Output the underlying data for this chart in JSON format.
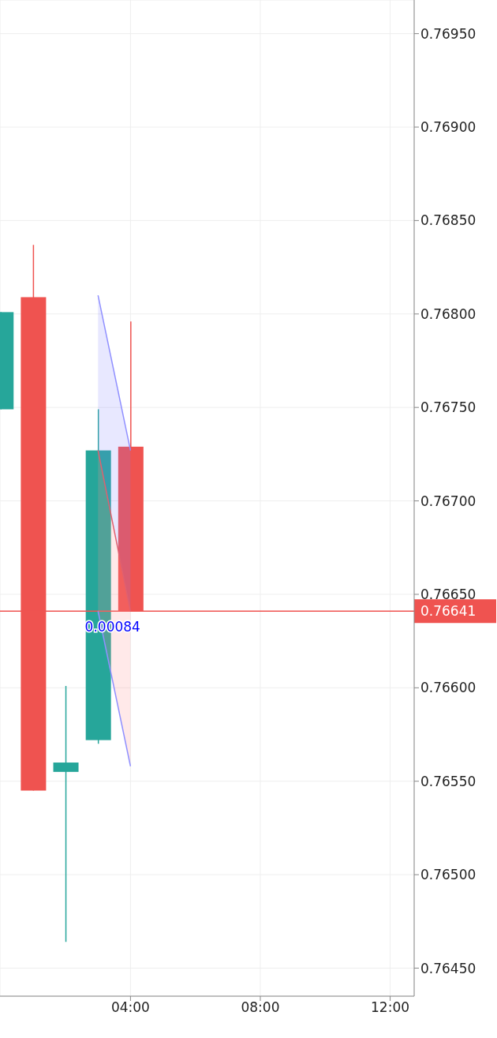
{
  "chart_data": {
    "type": "candlestick",
    "x": [
      0,
      1,
      2,
      3,
      4
    ],
    "ohlc": [
      [
        0.76749,
        0.76801,
        0.76749,
        0.76801
      ],
      [
        0.76809,
        0.76837,
        0.76545,
        0.76545
      ],
      [
        0.76555,
        0.76601,
        0.76464,
        0.7656
      ],
      [
        0.76572,
        0.76749,
        0.7657,
        0.76727
      ],
      [
        0.76729,
        0.76796,
        0.76641,
        0.76641
      ]
    ],
    "colors": [
      "#26a69a",
      "#ef5350",
      "#26a69a",
      "#26a69a",
      "#ef5350"
    ],
    "xlim": [
      -0.02,
      12.74
    ],
    "xticks": [
      {
        "value": 4,
        "label": "04:00"
      },
      {
        "value": 8,
        "label": "08:00"
      },
      {
        "value": 12,
        "label": "12:00"
      }
    ],
    "ylim": [
      0.76435,
      0.76968
    ],
    "yticks": [
      {
        "value": 0.7645,
        "label": "0.76450"
      },
      {
        "value": 0.765,
        "label": "0.76500"
      },
      {
        "value": 0.7655,
        "label": "0.76550"
      },
      {
        "value": 0.766,
        "label": "0.76600"
      },
      {
        "value": 0.7665,
        "label": "0.76650"
      },
      {
        "value": 0.767,
        "label": "0.76700"
      },
      {
        "value": 0.7675,
        "label": "0.76750"
      },
      {
        "value": 0.768,
        "label": "0.76800"
      },
      {
        "value": 0.7685,
        "label": "0.76850"
      },
      {
        "value": 0.769,
        "label": "0.76900"
      },
      {
        "value": 0.7695,
        "label": "0.76950"
      }
    ],
    "grid": true,
    "ref_lines": [
      {
        "axis": "y",
        "value": 0.76641,
        "label": "0.76641",
        "color": "#ef5350"
      }
    ],
    "annotations": [
      {
        "text": "0.00084",
        "x": 3.45,
        "y": 0.7663
      }
    ]
  }
}
